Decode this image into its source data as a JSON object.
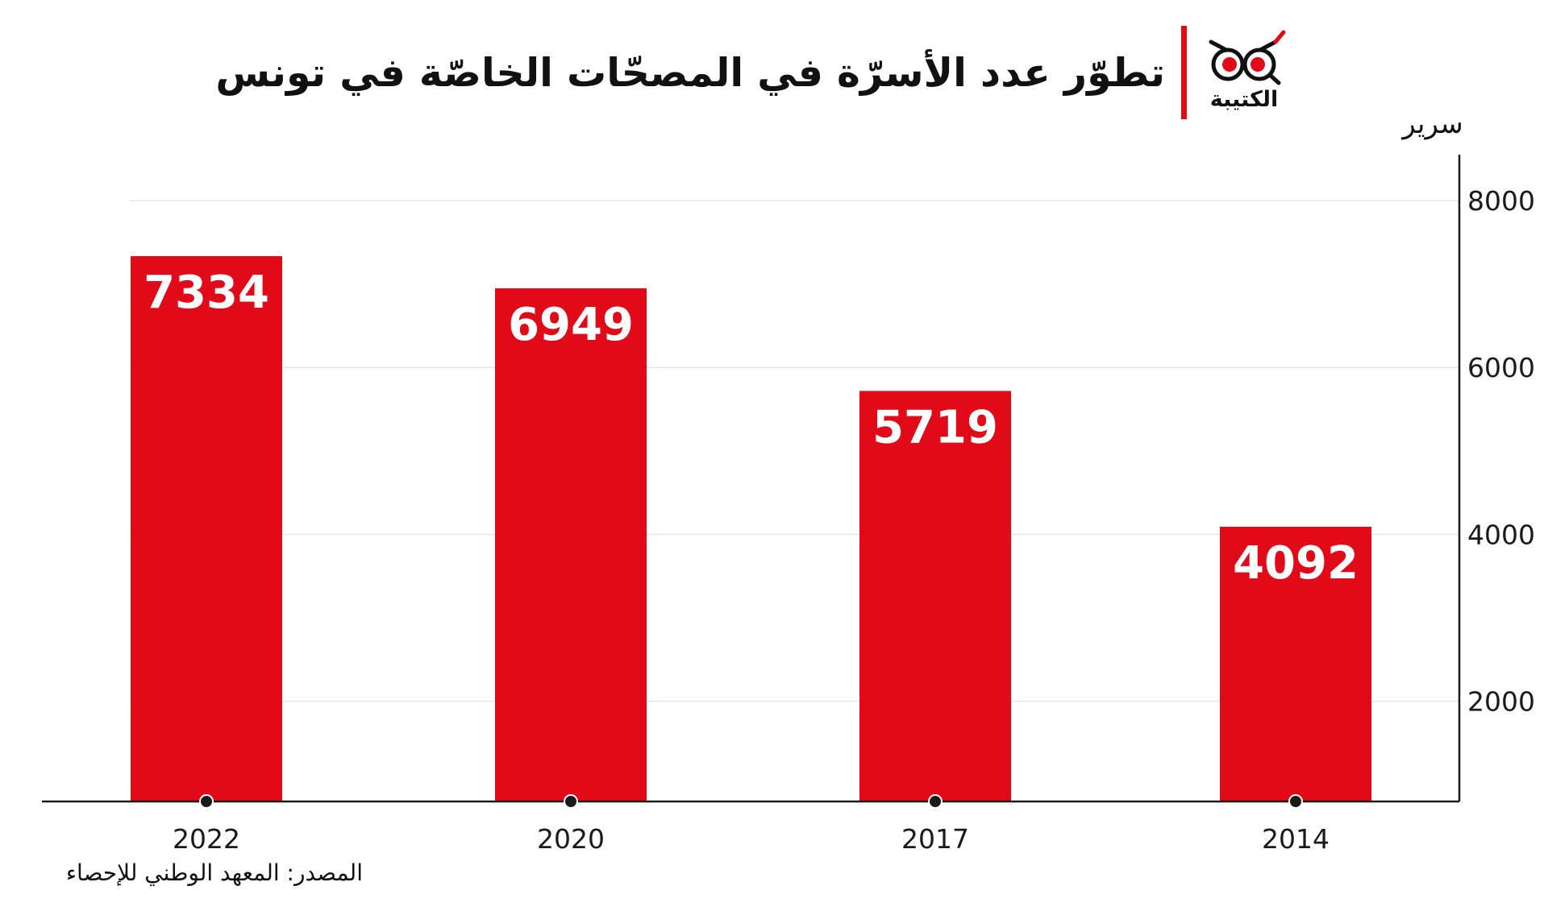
{
  "header": {
    "title": "تطوّر عدد الأسرّة في المصحّات الخاصّة في تونس",
    "brand_name": "الكتيبة",
    "logo_icon": "owl-eyes-icon",
    "accent_color": "#e00a18"
  },
  "chart_data": {
    "type": "bar",
    "title": "تطوّر عدد الأسرّة في المصحّات الخاصّة في تونس",
    "categories": [
      "2022",
      "2020",
      "2017",
      "2014"
    ],
    "series": [
      {
        "values": [
          7334,
          6949,
          5719,
          4092
        ]
      }
    ],
    "value_labels": [
      "7334",
      "6949",
      "5719",
      "4092"
    ],
    "xlabel": "",
    "ylabel": "سرير",
    "ylim": [
      800,
      8500
    ],
    "yticks": [
      8000,
      6000,
      4000,
      2000
    ],
    "ytick_labels": [
      "8000",
      "6000",
      "4000",
      "2000"
    ],
    "y_axis_side": "right",
    "grid": true,
    "legend": "none",
    "bar_color": "#e00a18",
    "value_label_color": "#ffffff",
    "grid_color": "#e6e6e6",
    "axis_color": "#1a1a1a"
  },
  "footer": {
    "source": "المصدر: المعهد الوطني للإحصاء"
  }
}
